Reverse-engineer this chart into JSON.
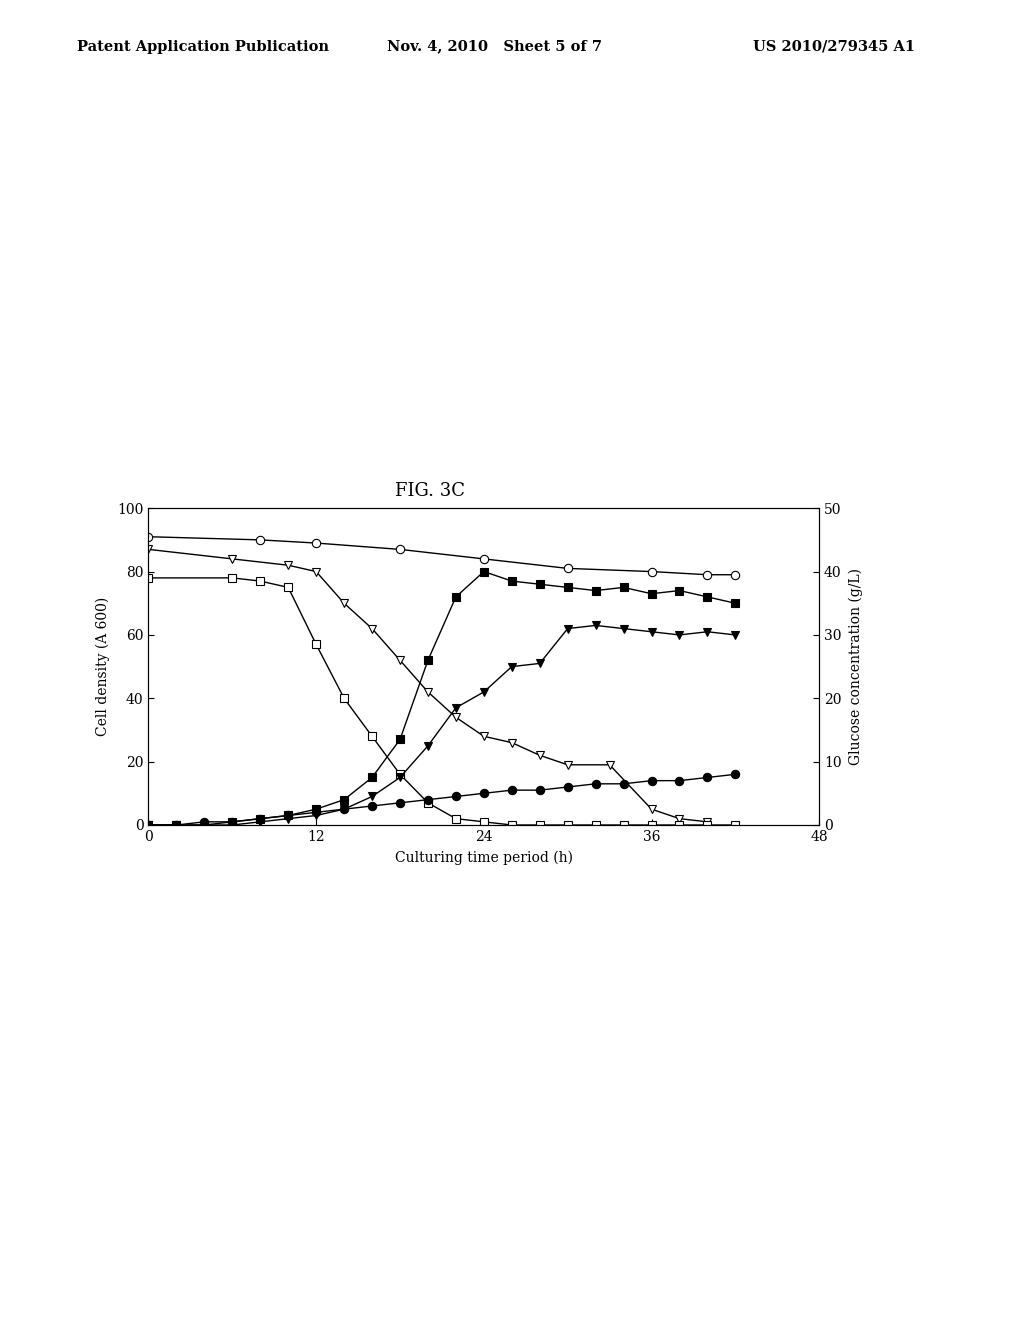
{
  "title": "FIG. 3C",
  "xlabel": "Culturing time period (h)",
  "ylabel_left": "Cell density (A 600)",
  "ylabel_right": "Glucose concentration (g/L)",
  "xlim": [
    0,
    48
  ],
  "ylim_left": [
    0,
    100
  ],
  "ylim_right": [
    0,
    50
  ],
  "xticks": [
    0,
    12,
    24,
    36,
    48
  ],
  "yticks_left": [
    0,
    20,
    40,
    60,
    80,
    100
  ],
  "yticks_right": [
    0,
    10,
    20,
    30,
    40,
    50
  ],
  "series": {
    "circle_open": {
      "x": [
        0,
        8,
        12,
        18,
        24,
        30,
        36,
        40,
        42
      ],
      "y": [
        91,
        90,
        89,
        87,
        84,
        81,
        80,
        79,
        79
      ],
      "marker": "o",
      "filled": false
    },
    "triangle_open": {
      "x": [
        0,
        6,
        10,
        12,
        14,
        16,
        18,
        20,
        22,
        24,
        26,
        28,
        30,
        33,
        36,
        38,
        40
      ],
      "y": [
        87,
        84,
        82,
        80,
        70,
        62,
        52,
        42,
        34,
        28,
        26,
        22,
        19,
        19,
        5,
        2,
        1
      ],
      "marker": "v",
      "filled": false
    },
    "square_open": {
      "x": [
        0,
        6,
        8,
        10,
        12,
        14,
        16,
        18,
        20,
        22,
        24,
        26,
        28,
        30,
        32,
        34,
        36,
        38,
        40,
        42
      ],
      "y": [
        78,
        78,
        77,
        75,
        57,
        40,
        28,
        16,
        7,
        2,
        1,
        0,
        0,
        0,
        0,
        0,
        0,
        0,
        0,
        0
      ],
      "marker": "s",
      "filled": false
    },
    "square_filled": {
      "x": [
        0,
        2,
        4,
        6,
        8,
        10,
        12,
        14,
        16,
        18,
        20,
        22,
        24,
        26,
        28,
        30,
        32,
        34,
        36,
        38,
        40,
        42
      ],
      "y": [
        0,
        0,
        0,
        1,
        2,
        3,
        5,
        8,
        15,
        27,
        52,
        72,
        80,
        77,
        76,
        75,
        74,
        75,
        73,
        74,
        72,
        70
      ],
      "marker": "s",
      "filled": true
    },
    "triangle_filled": {
      "x": [
        0,
        2,
        4,
        6,
        8,
        10,
        12,
        14,
        16,
        18,
        20,
        22,
        24,
        26,
        28,
        30,
        32,
        34,
        36,
        38,
        40,
        42
      ],
      "y": [
        0,
        0,
        0,
        0,
        1,
        2,
        3,
        5,
        9,
        15,
        25,
        37,
        42,
        50,
        51,
        62,
        63,
        62,
        61,
        60,
        61,
        60
      ],
      "marker": "v",
      "filled": true
    },
    "circle_filled": {
      "x": [
        0,
        2,
        4,
        6,
        8,
        10,
        12,
        14,
        16,
        18,
        20,
        22,
        24,
        26,
        28,
        30,
        32,
        34,
        36,
        38,
        40,
        42
      ],
      "y": [
        0,
        0,
        1,
        1,
        2,
        3,
        4,
        5,
        6,
        7,
        8,
        9,
        10,
        11,
        11,
        12,
        13,
        13,
        14,
        14,
        15,
        16
      ],
      "marker": "o",
      "filled": true
    }
  },
  "header_left": "Patent Application Publication",
  "header_center": "Nov. 4, 2010   Sheet 5 of 7",
  "header_right": "US 2010/279345 A1",
  "background_color": "#ffffff"
}
